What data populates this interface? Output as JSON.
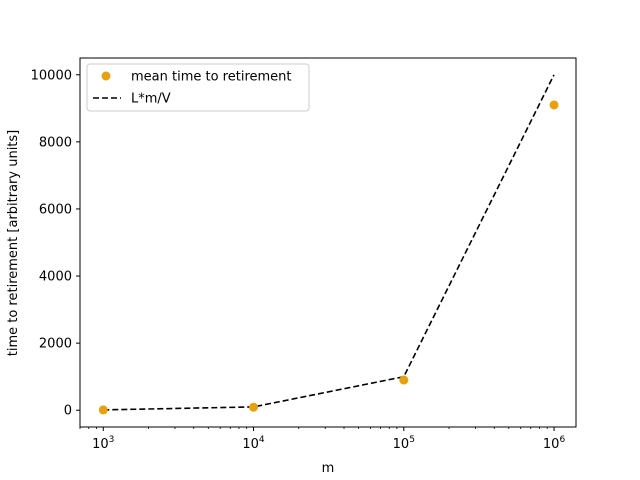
{
  "chart_data": {
    "type": "scatter",
    "title": "",
    "xlabel": "m",
    "ylabel": "time to retirement [arbitrary units]",
    "xscale": "log",
    "xlim": [
      700,
      1400000
    ],
    "ylim": [
      -500,
      10500
    ],
    "x_ticks": [
      {
        "value": 1000,
        "base": "10",
        "exp": "3"
      },
      {
        "value": 10000,
        "base": "10",
        "exp": "4"
      },
      {
        "value": 100000,
        "base": "10",
        "exp": "5"
      },
      {
        "value": 1000000,
        "base": "10",
        "exp": "6"
      }
    ],
    "y_ticks": [
      {
        "value": 0,
        "label": "0"
      },
      {
        "value": 2000,
        "label": "2000"
      },
      {
        "value": 4000,
        "label": "4000"
      },
      {
        "value": 6000,
        "label": "6000"
      },
      {
        "value": 8000,
        "label": "8000"
      },
      {
        "value": 10000,
        "label": "10000"
      }
    ],
    "series": [
      {
        "name": "mean time to retirement",
        "kind": "scatter",
        "color": "#e8a00f",
        "x": [
          1000,
          10000,
          100000,
          1000000
        ],
        "y": [
          10,
          90,
          900,
          9100
        ]
      },
      {
        "name": "L*m/V",
        "kind": "line",
        "color": "#000000",
        "dashed": true,
        "x": [
          1000,
          10000,
          100000,
          1000000
        ],
        "y": [
          10,
          100,
          1000,
          10000
        ]
      }
    ],
    "legend_position": "top-left",
    "grid": false
  }
}
